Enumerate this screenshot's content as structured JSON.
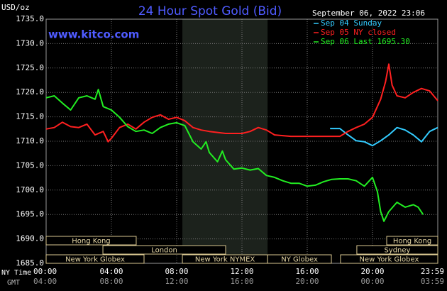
{
  "chart_data": {
    "type": "line",
    "title": "24 Hour Spot Gold (Bid)",
    "unit_label": "USD/oz",
    "site": "www.kitco.com",
    "timestamp": "September 06, 2022 23:06",
    "x_axis_label": "NY Time",
    "x2_axis_label": "GMT",
    "xlim": [
      0,
      24
    ],
    "xticks": [
      {
        "value": 0,
        "label": "00:00"
      },
      {
        "value": 4,
        "label": "04:00"
      },
      {
        "value": 8,
        "label": "08:00"
      },
      {
        "value": 12,
        "label": "12:00"
      },
      {
        "value": 16,
        "label": "16:00"
      },
      {
        "value": 20,
        "label": "20:00"
      },
      {
        "value": 24,
        "label": "23:59"
      }
    ],
    "gmt_labels": [
      "04:00",
      "08:00",
      "12:00",
      "16:00",
      "20:00",
      "00:00",
      "03:59"
    ],
    "ylim": [
      1685,
      1735
    ],
    "yticks": [
      {
        "value": 1685,
        "label": "1685.0"
      },
      {
        "value": 1690,
        "label": "1690.0"
      },
      {
        "value": 1695,
        "label": "1695.0"
      },
      {
        "value": 1700,
        "label": "1700.0"
      },
      {
        "value": 1705,
        "label": "1705.0"
      },
      {
        "value": 1710,
        "label": "1710.0"
      },
      {
        "value": 1715,
        "label": "1715.0"
      },
      {
        "value": 1720,
        "label": "1720.0"
      },
      {
        "value": 1725,
        "label": "1725.0"
      },
      {
        "value": 1730,
        "label": "1730.0"
      },
      {
        "value": 1735,
        "label": "1735.0"
      }
    ],
    "grid": true,
    "highlight": [
      8.35,
      13.57
    ],
    "sessions": [
      {
        "label": "Hong Kong",
        "start": 0,
        "end": 5.52,
        "row": 0
      },
      {
        "label": "Hong Kong",
        "start": 20.87,
        "end": 24,
        "row": 0
      },
      {
        "label": "London",
        "start": 3.48,
        "end": 11.0,
        "row": 1
      },
      {
        "label": "Sydney",
        "start": 19.04,
        "end": 24,
        "row": 1
      },
      {
        "label": "New York Globex",
        "start": 0,
        "end": 6.0,
        "row": 2
      },
      {
        "label": "New York NYMEX",
        "start": 8.35,
        "end": 13.57,
        "row": 2
      },
      {
        "label": "NY Globex",
        "start": 13.57,
        "end": 17.48,
        "row": 2
      },
      {
        "label": "New York Globex",
        "start": 18.04,
        "end": 24,
        "row": 2
      }
    ],
    "series": [
      {
        "name": "Sep 04 Sunday",
        "color": "#33ccff",
        "x": [
          17.4,
          18,
          18.5,
          19,
          19.5,
          20,
          20.5,
          21,
          21.5,
          22,
          22.5,
          23,
          23.5,
          24
        ],
        "values": [
          1712.6,
          1712.6,
          1711.3,
          1710.1,
          1709.9,
          1709.1,
          1710.1,
          1711.3,
          1712.8,
          1712.3,
          1711.3,
          1709.9,
          1712.0,
          1712.8
        ]
      },
      {
        "name": "Sep 05 NY closed",
        "color": "#ff2020",
        "x": [
          0,
          0.5,
          1,
          1.5,
          2,
          2.5,
          3,
          3.5,
          3.8,
          4,
          4.5,
          5,
          5.5,
          6,
          6.5,
          7,
          7.5,
          8,
          8.5,
          9,
          9.5,
          10,
          11,
          12,
          12.5,
          13,
          13.5,
          14,
          15,
          16,
          17,
          18,
          18.5,
          19,
          19.5,
          20,
          20.5,
          20.8,
          21,
          21.2,
          21.5,
          22,
          22.5,
          23,
          23.5,
          24
        ],
        "values": [
          1712.5,
          1712.8,
          1713.9,
          1713.0,
          1712.8,
          1713.5,
          1711.3,
          1712.0,
          1709.9,
          1710.6,
          1712.8,
          1713.5,
          1712.5,
          1713.9,
          1714.9,
          1715.4,
          1714.5,
          1714.9,
          1714.2,
          1712.8,
          1712.3,
          1712.0,
          1711.6,
          1711.6,
          1712.0,
          1712.8,
          1712.3,
          1711.3,
          1711.0,
          1711.0,
          1711.0,
          1711.0,
          1712.0,
          1712.8,
          1713.5,
          1714.9,
          1718.6,
          1722.2,
          1725.8,
          1721.5,
          1719.3,
          1718.9,
          1720.0,
          1720.8,
          1720.3,
          1718.3
        ]
      },
      {
        "name": "Sep 06 Last 1695.30",
        "color": "#22ee22",
        "x": [
          0,
          0.5,
          1,
          1.5,
          2,
          2.5,
          3,
          3.2,
          3.5,
          4,
          4.5,
          5,
          5.5,
          6,
          6.5,
          7,
          7.5,
          8,
          8.5,
          9,
          9.5,
          9.8,
          10,
          10.5,
          10.8,
          11,
          11.5,
          12,
          12.5,
          13,
          13.5,
          14,
          14.5,
          15,
          15.5,
          16,
          16.5,
          17,
          17.5,
          18,
          18.5,
          19,
          19.5,
          20,
          20.3,
          20.5,
          20.7,
          21,
          21.5,
          22,
          22.5,
          22.8,
          23.1
        ],
        "values": [
          1718.9,
          1719.3,
          1717.8,
          1716.4,
          1718.9,
          1719.3,
          1718.6,
          1720.6,
          1717.1,
          1716.4,
          1714.9,
          1713.0,
          1712.0,
          1712.3,
          1711.6,
          1712.8,
          1713.5,
          1713.8,
          1713.2,
          1709.9,
          1708.4,
          1709.9,
          1707.7,
          1705.8,
          1708.0,
          1706.2,
          1704.3,
          1704.5,
          1704.1,
          1704.4,
          1703.0,
          1702.6,
          1701.9,
          1701.4,
          1701.4,
          1700.8,
          1701.0,
          1701.7,
          1702.2,
          1702.3,
          1702.3,
          1701.9,
          1700.8,
          1702.6,
          1699.7,
          1695.6,
          1693.6,
          1695.6,
          1697.5,
          1696.5,
          1697.0,
          1696.5,
          1695.0
        ]
      }
    ]
  }
}
